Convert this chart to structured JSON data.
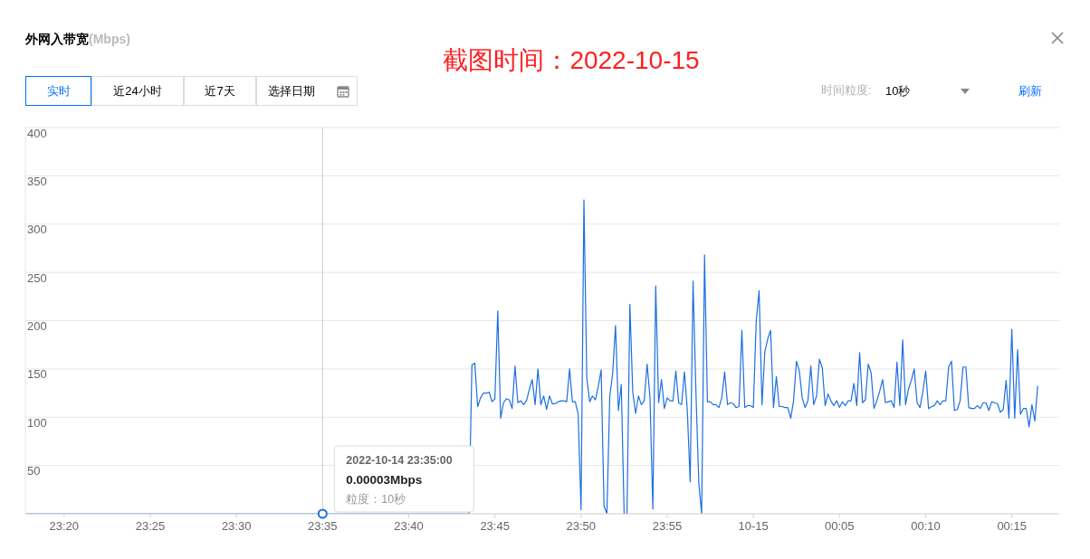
{
  "chart_data": {
    "type": "line",
    "title": "外网入带宽",
    "subtitle": "(Mbps)",
    "annotations": [
      "截图时间：2022-10-15",
      "实时",
      "近24小时",
      "近7天",
      "选择日期",
      "时间粒度:",
      "10秒",
      "刷新",
      {
        "text": "2022-10-14 23:35:00\n0.00003Mbps\n粒度：10秒",
        "x": "2022-10-14T23:35:00",
        "y": 3e-05
      }
    ],
    "color": "#1e6fe0",
    "marker": "none",
    "grid": "y",
    "xlim": [
      "2022-10-14T23:17:45",
      "2022-10-15T00:17:45"
    ],
    "xticks": [
      {
        "value": "2022-10-14T23:20",
        "label": "23:20"
      },
      {
        "value": "2022-10-14T23:25",
        "label": "23:25"
      },
      {
        "value": "2022-10-14T23:30",
        "label": "23:30"
      },
      {
        "value": "2022-10-14T23:35",
        "label": "23:35"
      },
      {
        "value": "2022-10-14T23:40",
        "label": "23:40"
      },
      {
        "value": "2022-10-14T23:45",
        "label": "23:45"
      },
      {
        "value": "2022-10-14T23:50",
        "label": "23:50"
      },
      {
        "value": "2022-10-14T23:55",
        "label": "23:55"
      },
      {
        "value": "2022-10-15T00:00",
        "label": "10-15"
      },
      {
        "value": "2022-10-15T00:05",
        "label": "00:05"
      },
      {
        "value": "2022-10-15T00:10",
        "label": "00:10"
      },
      {
        "value": "2022-10-15T00:15",
        "label": "00:15"
      }
    ],
    "ylim": [
      0,
      400
    ],
    "yticks": [
      {
        "value": 0,
        "label": null
      },
      50,
      100,
      150,
      200,
      250,
      300,
      350,
      400
    ],
    "ref_lines": [
      {
        "axis": "x",
        "value": "2022-10-14T23:35:00",
        "color": "#cccccc"
      }
    ],
    "x": [
      "2022-10-14T23:17:50",
      "2022-10-14T23:35:00",
      "2022-10-14T23:43:30",
      "2022-10-14T23:43:40",
      "2022-10-14T23:43:50",
      "2022-10-14T23:44:00",
      "2022-10-14T23:44:10",
      "2022-10-14T23:44:20",
      "2022-10-14T23:44:30",
      "2022-10-14T23:44:40",
      "2022-10-14T23:44:50",
      "2022-10-14T23:45:00",
      "2022-10-14T23:45:10",
      "2022-10-14T23:45:20",
      "2022-10-14T23:45:30",
      "2022-10-14T23:45:40",
      "2022-10-14T23:45:50",
      "2022-10-14T23:46:00",
      "2022-10-14T23:46:10",
      "2022-10-14T23:46:20",
      "2022-10-14T23:46:30",
      "2022-10-14T23:46:40",
      "2022-10-14T23:46:50",
      "2022-10-14T23:47:00",
      "2022-10-14T23:47:10",
      "2022-10-14T23:47:20",
      "2022-10-14T23:47:30",
      "2022-10-14T23:47:40",
      "2022-10-14T23:47:50",
      "2022-10-14T23:48:00",
      "2022-10-14T23:48:10",
      "2022-10-14T23:48:20",
      "2022-10-14T23:48:30",
      "2022-10-14T23:48:40",
      "2022-10-14T23:48:50",
      "2022-10-14T23:49:00",
      "2022-10-14T23:49:10",
      "2022-10-14T23:49:20",
      "2022-10-14T23:49:30",
      "2022-10-14T23:49:40",
      "2022-10-14T23:49:50",
      "2022-10-14T23:50:00",
      "2022-10-14T23:50:10",
      "2022-10-14T23:50:20",
      "2022-10-14T23:50:30",
      "2022-10-14T23:50:40",
      "2022-10-14T23:50:50",
      "2022-10-14T23:51:00",
      "2022-10-14T23:51:10",
      "2022-10-14T23:51:20",
      "2022-10-14T23:51:30",
      "2022-10-14T23:51:40",
      "2022-10-14T23:51:50",
      "2022-10-14T23:52:00",
      "2022-10-14T23:52:10",
      "2022-10-14T23:52:20",
      "2022-10-14T23:52:30",
      "2022-10-14T23:52:40",
      "2022-10-14T23:52:50",
      "2022-10-14T23:53:00",
      "2022-10-14T23:53:10",
      "2022-10-14T23:53:20",
      "2022-10-14T23:53:30",
      "2022-10-14T23:53:40",
      "2022-10-14T23:53:50",
      "2022-10-14T23:54:00",
      "2022-10-14T23:54:10",
      "2022-10-14T23:54:20",
      "2022-10-14T23:54:30",
      "2022-10-14T23:54:40",
      "2022-10-14T23:54:50",
      "2022-10-14T23:55:00",
      "2022-10-14T23:55:10",
      "2022-10-14T23:55:20",
      "2022-10-14T23:55:30",
      "2022-10-14T23:55:40",
      "2022-10-14T23:55:50",
      "2022-10-14T23:56:00",
      "2022-10-14T23:56:10",
      "2022-10-14T23:56:20",
      "2022-10-14T23:56:30",
      "2022-10-14T23:56:40",
      "2022-10-14T23:56:50",
      "2022-10-14T23:57:00",
      "2022-10-14T23:57:10",
      "2022-10-14T23:57:20",
      "2022-10-14T23:57:30",
      "2022-10-14T23:57:40",
      "2022-10-14T23:57:50",
      "2022-10-14T23:58:00",
      "2022-10-14T23:58:10",
      "2022-10-14T23:58:20",
      "2022-10-14T23:58:30",
      "2022-10-14T23:58:40",
      "2022-10-14T23:58:50",
      "2022-10-14T23:59:00",
      "2022-10-14T23:59:10",
      "2022-10-14T23:59:20",
      "2022-10-14T23:59:30",
      "2022-10-14T23:59:40",
      "2022-10-14T23:59:50",
      "2022-10-15T00:00:00",
      "2022-10-15T00:00:10",
      "2022-10-15T00:00:20",
      "2022-10-15T00:00:30",
      "2022-10-15T00:00:40",
      "2022-10-15T00:00:50",
      "2022-10-15T00:01:00",
      "2022-10-15T00:01:10",
      "2022-10-15T00:01:20",
      "2022-10-15T00:01:30",
      "2022-10-15T00:01:40",
      "2022-10-15T00:01:50",
      "2022-10-15T00:02:00",
      "2022-10-15T00:02:10",
      "2022-10-15T00:02:20",
      "2022-10-15T00:02:30",
      "2022-10-15T00:02:40",
      "2022-10-15T00:02:50",
      "2022-10-15T00:03:00",
      "2022-10-15T00:03:10",
      "2022-10-15T00:03:20",
      "2022-10-15T00:03:30",
      "2022-10-15T00:03:40",
      "2022-10-15T00:03:50",
      "2022-10-15T00:04:00",
      "2022-10-15T00:04:10",
      "2022-10-15T00:04:20",
      "2022-10-15T00:04:30",
      "2022-10-15T00:04:40",
      "2022-10-15T00:04:50",
      "2022-10-15T00:05:00",
      "2022-10-15T00:05:10",
      "2022-10-15T00:05:20",
      "2022-10-15T00:05:30",
      "2022-10-15T00:05:40",
      "2022-10-15T00:05:50",
      "2022-10-15T00:06:00",
      "2022-10-15T00:06:10",
      "2022-10-15T00:06:20",
      "2022-10-15T00:06:30",
      "2022-10-15T00:06:40",
      "2022-10-15T00:06:50",
      "2022-10-15T00:07:00",
      "2022-10-15T00:07:10",
      "2022-10-15T00:07:20",
      "2022-10-15T00:07:30",
      "2022-10-15T00:07:40",
      "2022-10-15T00:07:50",
      "2022-10-15T00:08:00",
      "2022-10-15T00:08:10",
      "2022-10-15T00:08:20",
      "2022-10-15T00:08:30",
      "2022-10-15T00:08:40",
      "2022-10-15T00:08:50",
      "2022-10-15T00:09:00",
      "2022-10-15T00:09:10",
      "2022-10-15T00:09:20",
      "2022-10-15T00:09:30",
      "2022-10-15T00:09:40",
      "2022-10-15T00:09:50",
      "2022-10-15T00:10:00",
      "2022-10-15T00:10:10",
      "2022-10-15T00:10:20",
      "2022-10-15T00:10:30",
      "2022-10-15T00:10:40",
      "2022-10-15T00:10:50",
      "2022-10-15T00:11:00",
      "2022-10-15T00:11:10",
      "2022-10-15T00:11:20",
      "2022-10-15T00:11:30",
      "2022-10-15T00:11:40",
      "2022-10-15T00:11:50",
      "2022-10-15T00:12:00",
      "2022-10-15T00:12:10",
      "2022-10-15T00:12:20",
      "2022-10-15T00:12:30",
      "2022-10-15T00:12:40",
      "2022-10-15T00:12:50",
      "2022-10-15T00:13:00",
      "2022-10-15T00:13:10",
      "2022-10-15T00:13:20",
      "2022-10-15T00:13:30",
      "2022-10-15T00:13:40",
      "2022-10-15T00:13:50",
      "2022-10-15T00:14:00",
      "2022-10-15T00:14:10",
      "2022-10-15T00:14:20",
      "2022-10-15T00:14:30",
      "2022-10-15T00:14:40",
      "2022-10-15T00:14:50",
      "2022-10-15T00:15:00",
      "2022-10-15T00:15:10",
      "2022-10-15T00:15:20",
      "2022-10-15T00:15:30",
      "2022-10-15T00:15:40",
      "2022-10-15T00:15:50",
      "2022-10-15T00:16:00",
      "2022-10-15T00:16:10",
      "2022-10-15T00:16:20",
      "2022-10-15T00:16:30"
    ],
    "values": [
      0,
      3e-05,
      0,
      154,
      156,
      111,
      120,
      125,
      125,
      126,
      116,
      119,
      210,
      99,
      115,
      119,
      118,
      109,
      153,
      115,
      117,
      113,
      117,
      129,
      139,
      113,
      150,
      113,
      122,
      108,
      122,
      114,
      114,
      116,
      117,
      117,
      116,
      150,
      116,
      116,
      103,
      4,
      325,
      140,
      116,
      122,
      118,
      132,
      149,
      8,
      0,
      122,
      145,
      195,
      107,
      134,
      0,
      0,
      217,
      126,
      104,
      122,
      113,
      117,
      155,
      121,
      5,
      236,
      115,
      139,
      109,
      120,
      117,
      117,
      148,
      115,
      113,
      147,
      107,
      33,
      241,
      126,
      32,
      0,
      268,
      116,
      116,
      113,
      113,
      110,
      120,
      147,
      113,
      115,
      114,
      110,
      111,
      190,
      110,
      112,
      112,
      110,
      200,
      231,
      113,
      168,
      181,
      190,
      110,
      142,
      111,
      111,
      110,
      110,
      99,
      117,
      158,
      148,
      120,
      110,
      117,
      153,
      113,
      122,
      160,
      151,
      112,
      124,
      117,
      112,
      117,
      110,
      116,
      112,
      117,
      117,
      135,
      112,
      167,
      115,
      118,
      155,
      146,
      109,
      117,
      127,
      139,
      115,
      116,
      117,
      110,
      157,
      112,
      180,
      113,
      129,
      138,
      150,
      115,
      110,
      126,
      148,
      109,
      111,
      112,
      117,
      113,
      117,
      117,
      152,
      158,
      107,
      108,
      117,
      152,
      152,
      110,
      109,
      109,
      112,
      109,
      115,
      115,
      107,
      116,
      115,
      114,
      105,
      108,
      138,
      99,
      191,
      99,
      170,
      103,
      109,
      109,
      90,
      113,
      96,
      132
    ]
  }
}
